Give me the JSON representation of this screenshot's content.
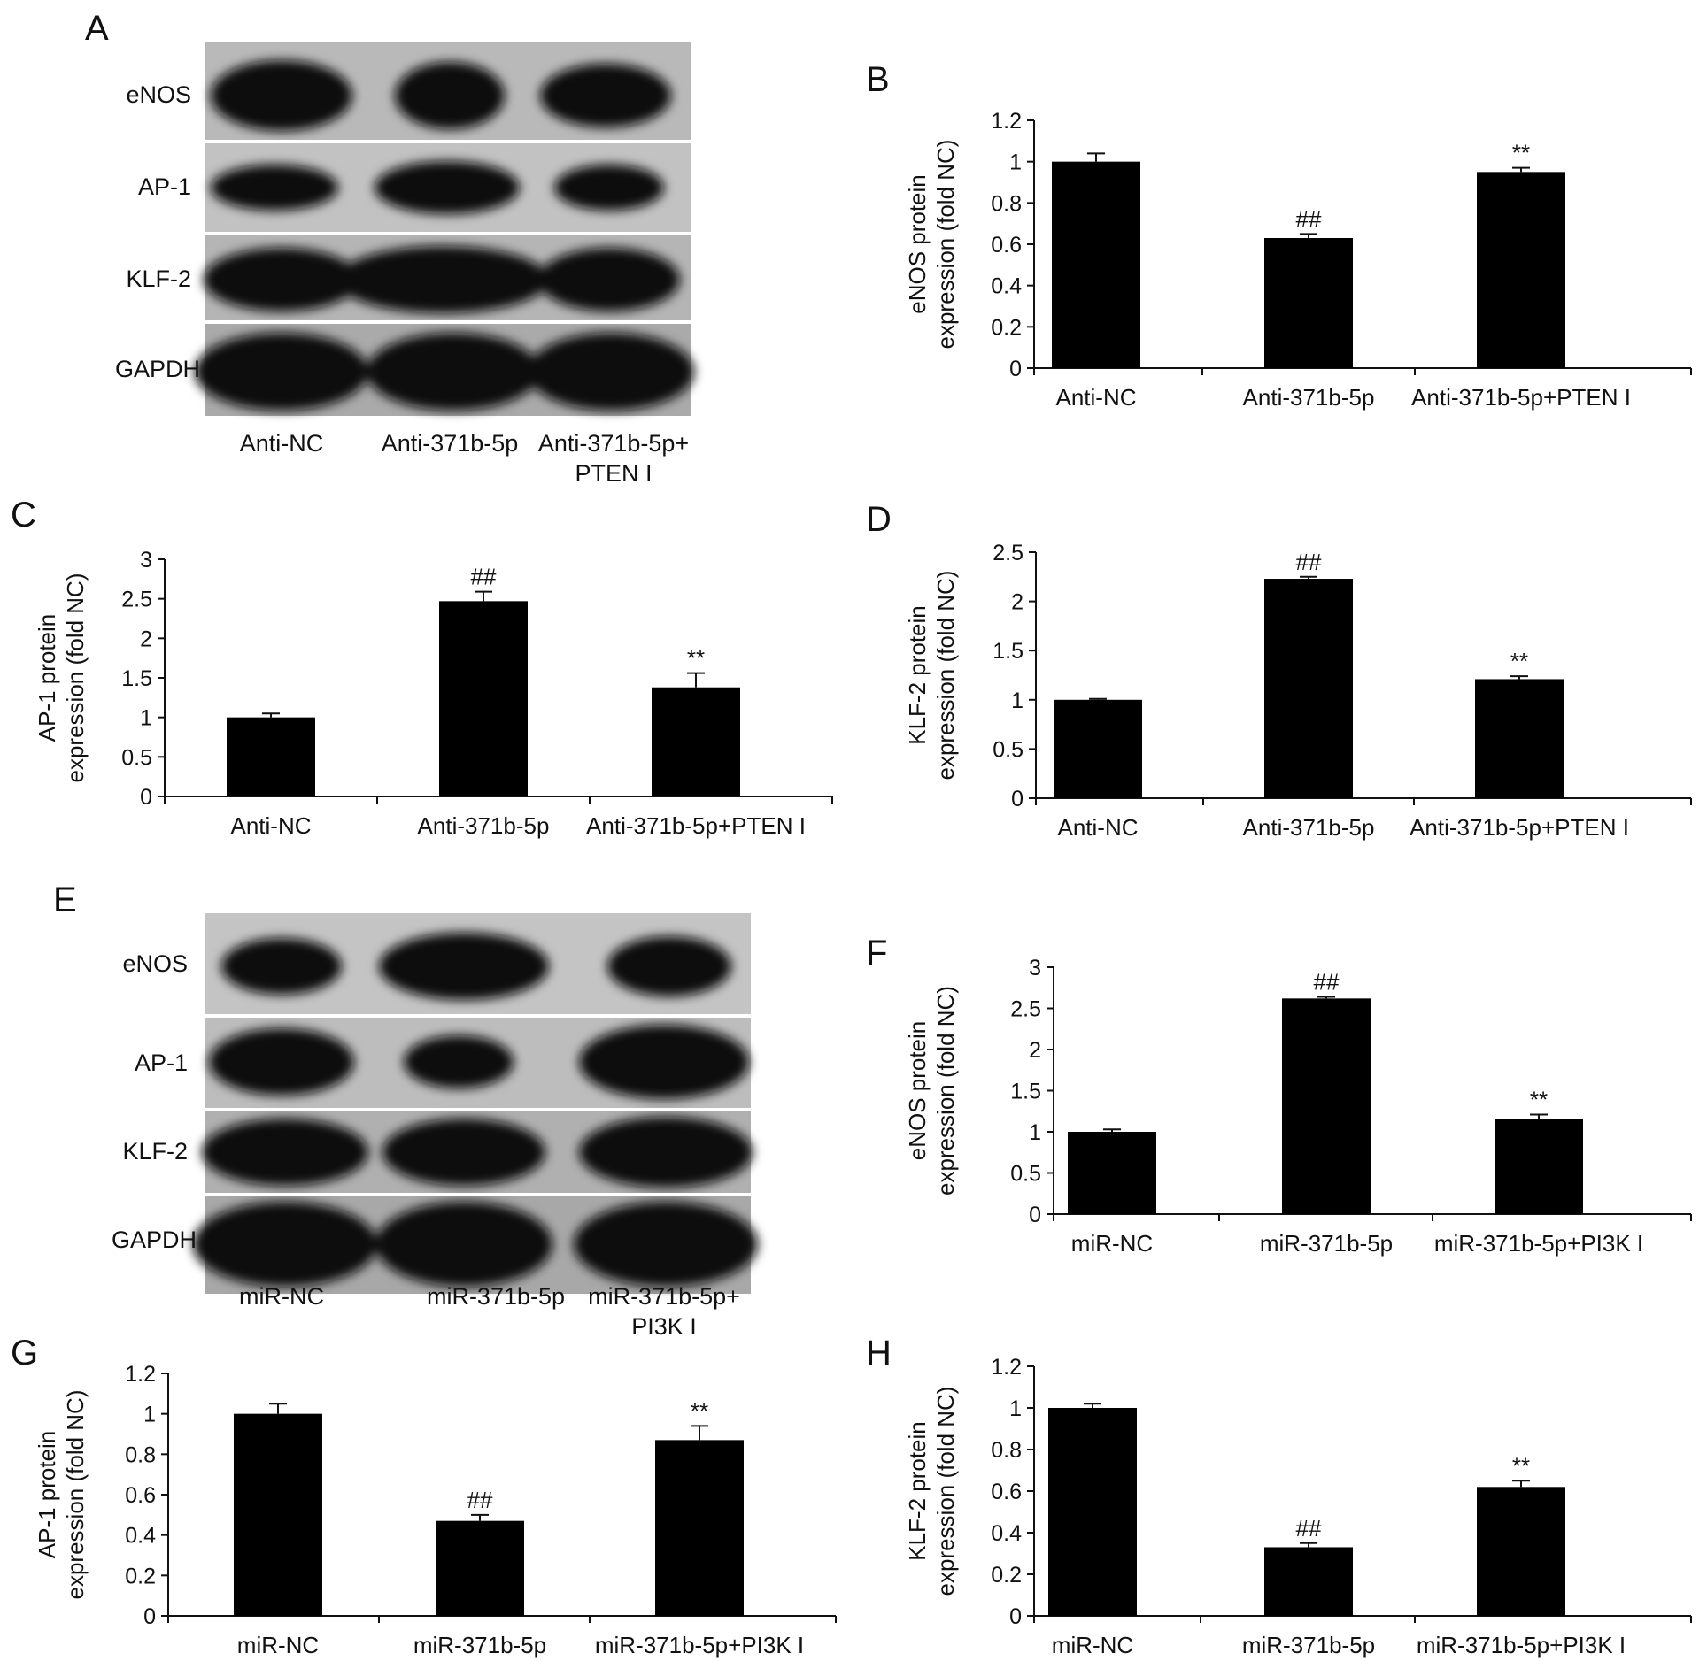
{
  "panels": {
    "A": "A",
    "B": "B",
    "C": "C",
    "D": "D",
    "E": "E",
    "F": "F",
    "G": "G",
    "H": "H"
  },
  "blot_top": {
    "proteins": [
      "eNOS",
      "AP-1",
      "KLF-2",
      "GAPDH"
    ],
    "lanes": [
      "Anti-NC",
      "Anti-371b-5p",
      "Anti-371b-5p+\nPTEN I"
    ]
  },
  "blot_bottom": {
    "proteins": [
      "eNOS",
      "AP-1",
      "KLF-2",
      "GAPDH"
    ],
    "lanes": [
      "miR-NC",
      "miR-371b-5p",
      "miR-371b-5p+\nPI3K I"
    ]
  },
  "chart_data": [
    {
      "panel": "B",
      "type": "bar",
      "categories": [
        "Anti-NC",
        "Anti-371b-5p",
        "Anti-371b-5p+PTEN I"
      ],
      "values": [
        1.0,
        0.63,
        0.95
      ],
      "errors": [
        0.04,
        0.02,
        0.02
      ],
      "annotations": [
        "",
        "##",
        "**"
      ],
      "ylabel": [
        "eNOS protein",
        "expression (fold NC)"
      ],
      "ylim": [
        0,
        1.2
      ],
      "yticks": [
        "0",
        "0.2",
        "0.4",
        "0.6",
        "0.8",
        "1",
        "1.2"
      ],
      "bar_color": "#000000"
    },
    {
      "panel": "C",
      "type": "bar",
      "categories": [
        "Anti-NC",
        "Anti-371b-5p",
        "Anti-371b-5p+PTEN I"
      ],
      "values": [
        1.0,
        2.47,
        1.38
      ],
      "errors": [
        0.05,
        0.12,
        0.18
      ],
      "annotations": [
        "",
        "##",
        "**"
      ],
      "ylabel": [
        "AP-1 protein",
        "expression (fold NC)"
      ],
      "ylim": [
        0,
        3
      ],
      "yticks": [
        "0",
        "0.5",
        "1",
        "1.5",
        "2",
        "2.5",
        "3"
      ],
      "bar_color": "#000000"
    },
    {
      "panel": "D",
      "type": "bar",
      "categories": [
        "Anti-NC",
        "Anti-371b-5p",
        "Anti-371b-5p+PTEN I"
      ],
      "values": [
        1.0,
        2.23,
        1.21
      ],
      "errors": [
        0.01,
        0.02,
        0.03
      ],
      "annotations": [
        "",
        "##",
        "**"
      ],
      "ylabel": [
        "KLF-2 protein",
        "expression (fold NC)"
      ],
      "ylim": [
        0,
        2.5
      ],
      "yticks": [
        "0",
        "0.5",
        "1",
        "1.5",
        "2",
        "2.5"
      ],
      "bar_color": "#000000"
    },
    {
      "panel": "F",
      "type": "bar",
      "categories": [
        "miR-NC",
        "miR-371b-5p",
        "miR-371b-5p+PI3K I"
      ],
      "values": [
        1.0,
        2.62,
        1.16
      ],
      "errors": [
        0.03,
        0.02,
        0.05
      ],
      "annotations": [
        "",
        "##",
        "**"
      ],
      "ylabel": [
        "eNOS protein",
        "expression (fold NC)"
      ],
      "ylim": [
        0,
        3
      ],
      "yticks": [
        "0",
        "0.5",
        "1",
        "1.5",
        "2",
        "2.5",
        "3"
      ],
      "bar_color": "#000000"
    },
    {
      "panel": "G",
      "type": "bar",
      "categories": [
        "miR-NC",
        "miR-371b-5p",
        "miR-371b-5p+PI3K I"
      ],
      "values": [
        1.0,
        0.47,
        0.87
      ],
      "errors": [
        0.05,
        0.03,
        0.07
      ],
      "annotations": [
        "",
        "##",
        "**"
      ],
      "ylabel": [
        "AP-1 protein",
        "expression (fold NC)"
      ],
      "ylim": [
        0,
        1.2
      ],
      "yticks": [
        "0",
        "0.2",
        "0.4",
        "0.6",
        "0.8",
        "1",
        "1.2"
      ],
      "bar_color": "#000000"
    },
    {
      "panel": "H",
      "type": "bar",
      "categories": [
        "miR-NC",
        "miR-371b-5p",
        "miR-371b-5p+PI3K I"
      ],
      "values": [
        1.0,
        0.33,
        0.62
      ],
      "errors": [
        0.02,
        0.02,
        0.03
      ],
      "annotations": [
        "",
        "##",
        "**"
      ],
      "ylabel": [
        "KLF-2 protein",
        "expression (fold NC)"
      ],
      "ylim": [
        0,
        1.2
      ],
      "yticks": [
        "0",
        "0.2",
        "0.4",
        "0.6",
        "0.8",
        "1",
        "1.2"
      ],
      "bar_color": "#000000"
    }
  ]
}
